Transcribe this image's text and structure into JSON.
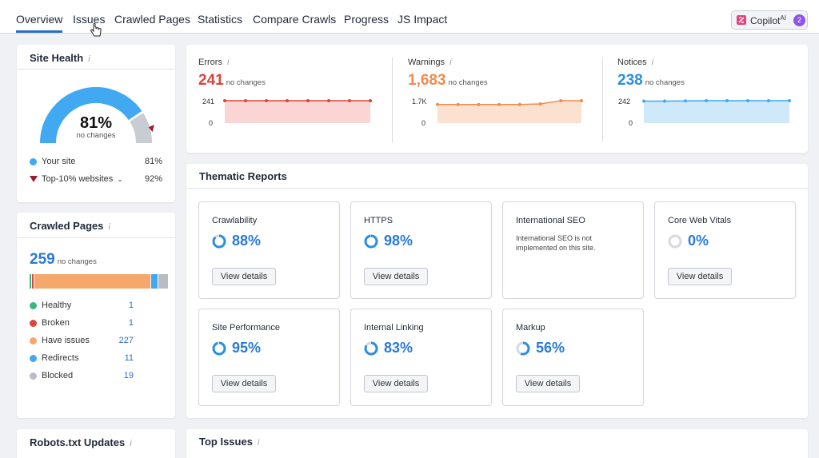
{
  "tabs": [
    "Overview",
    "Issues",
    "Crawled Pages",
    "Statistics",
    "Compare Crawls",
    "Progress",
    "JS Impact"
  ],
  "copilot": {
    "label": "Copilot",
    "ai": "AI",
    "count": "2"
  },
  "site_health": {
    "title": "Site Health",
    "info": "i",
    "percent": "81%",
    "change": "no changes",
    "percent_value": 81,
    "top10_value": 92,
    "legend": [
      {
        "label": "Your site",
        "value": "81%"
      },
      {
        "label": "Top-10% websites",
        "value": "92%"
      }
    ]
  },
  "crawled_pages": {
    "title": "Crawled Pages",
    "info": "i",
    "total": "259",
    "change": "no changes",
    "rows": [
      {
        "label": "Healthy",
        "value": "1",
        "color": "#3bb77e"
      },
      {
        "label": "Broken",
        "value": "1",
        "color": "#d9453d"
      },
      {
        "label": "Have issues",
        "value": "227",
        "color": "#f5a76c"
      },
      {
        "label": "Redirects",
        "value": "11",
        "color": "#41a9f2"
      },
      {
        "label": "Blocked",
        "value": "19",
        "color": "#b9bcc4"
      }
    ]
  },
  "metrics": [
    {
      "label": "Errors",
      "value": "241",
      "change": "no changes",
      "max": "241",
      "min": "0",
      "color": "#d9453d",
      "fill": "#fbd5d3",
      "series": [
        241,
        241,
        241,
        241,
        241,
        241,
        241,
        241
      ]
    },
    {
      "label": "Warnings",
      "value": "1,683",
      "change": "no changes",
      "max": "1.7K",
      "min": "0",
      "color": "#f08c4f",
      "fill": "#fde1d0",
      "series": [
        1400,
        1400,
        1400,
        1400,
        1400,
        1440,
        1683,
        1683
      ]
    },
    {
      "label": "Notices",
      "value": "238",
      "change": "no changes",
      "max": "242",
      "min": "0",
      "color": "#41a9f2",
      "fill": "#cfe9fb",
      "series": [
        234,
        234,
        236,
        238,
        238,
        238,
        238,
        238
      ]
    }
  ],
  "thematic": {
    "title": "Thematic Reports",
    "button": "View details",
    "reports": [
      {
        "name": "Crawlability",
        "pct": "88%",
        "value": 88
      },
      {
        "name": "HTTPS",
        "pct": "98%",
        "value": 98
      },
      {
        "name": "International SEO",
        "message": "International SEO is not implemented on this site."
      },
      {
        "name": "Core Web Vitals",
        "pct": "0%",
        "value": 0
      },
      {
        "name": "Site Performance",
        "pct": "95%",
        "value": 95
      },
      {
        "name": "Internal Linking",
        "pct": "83%",
        "value": 83
      },
      {
        "name": "Markup",
        "pct": "56%",
        "value": 56
      }
    ]
  },
  "robots": {
    "title": "Robots.txt Updates",
    "info": "i"
  },
  "top_issues": {
    "title": "Top Issues",
    "info": "i"
  }
}
